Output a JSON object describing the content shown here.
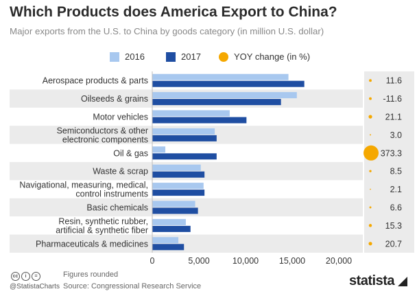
{
  "header": {
    "title": "Which Products does America Export to China?",
    "subtitle": "Major exports from the U.S. to China by goods category (in million U.S. dollar)"
  },
  "legend": {
    "items": [
      "2016",
      "2017",
      "YOY change (in %)"
    ]
  },
  "colors": {
    "series_2016": "#a8c8ef",
    "series_2017": "#1f4ea2",
    "yoy_dot": "#f5a800",
    "band": "#ebebeb",
    "yoy_panel": "#ebebeb"
  },
  "chart_data": {
    "type": "bar",
    "orientation": "horizontal",
    "categories": [
      "Aerospace products & parts",
      "Oilseeds & grains",
      "Motor vehicles",
      "Semiconductors & other electronic components",
      "Oil & gas",
      "Waste & scrap",
      "Navigational, measuring, medical, control instruments",
      "Basic chemicals",
      "Resin, synthetic rubber, artificial & synthetic fiber",
      "Pharmaceuticals & medicines"
    ],
    "category_lines": [
      [
        "Aerospace products & parts"
      ],
      [
        "Oilseeds & grains"
      ],
      [
        "Motor vehicles"
      ],
      [
        "Semiconductors & other",
        "electronic components"
      ],
      [
        "Oil & gas"
      ],
      [
        "Waste & scrap"
      ],
      [
        "Navigational, measuring, medical,",
        "control instruments"
      ],
      [
        "Basic chemicals"
      ],
      [
        "Resin, synthetic rubber,",
        "artificial & synthetic fiber"
      ],
      [
        "Pharmaceuticals & medicines"
      ]
    ],
    "series": [
      {
        "name": "2016",
        "values": [
          14600,
          15500,
          8300,
          6700,
          1400,
          5200,
          5500,
          4600,
          3600,
          2800
        ]
      },
      {
        "name": "2017",
        "values": [
          16300,
          13800,
          10100,
          6900,
          6900,
          5600,
          5600,
          4900,
          4100,
          3400
        ]
      }
    ],
    "yoy_change": {
      "name": "YOY change (in %)",
      "values": [
        11.6,
        -11.6,
        21.1,
        3.0,
        373.3,
        8.5,
        2.1,
        6.6,
        15.3,
        20.7
      ],
      "labels": [
        "11.6",
        "-11.6",
        "21.1",
        "3.0",
        "373.3",
        "8.5",
        "2.1",
        "6.6",
        "15.3",
        "20.7"
      ]
    },
    "xlim": [
      0,
      22500
    ],
    "xticks": [
      0,
      5000,
      10000,
      15000,
      20000
    ],
    "xtick_labels": [
      "0",
      "5,000",
      "10,000",
      "15,000",
      "20,000"
    ],
    "xlabel": "",
    "ylabel": "",
    "grid": false,
    "legend_position": "top-center"
  },
  "footer": {
    "note": "Figures rounded",
    "source": "Source: Congressional Research Service",
    "handle": "@StatistaCharts",
    "brand": "statista",
    "cc_icons": [
      "cc",
      "i",
      "="
    ]
  }
}
